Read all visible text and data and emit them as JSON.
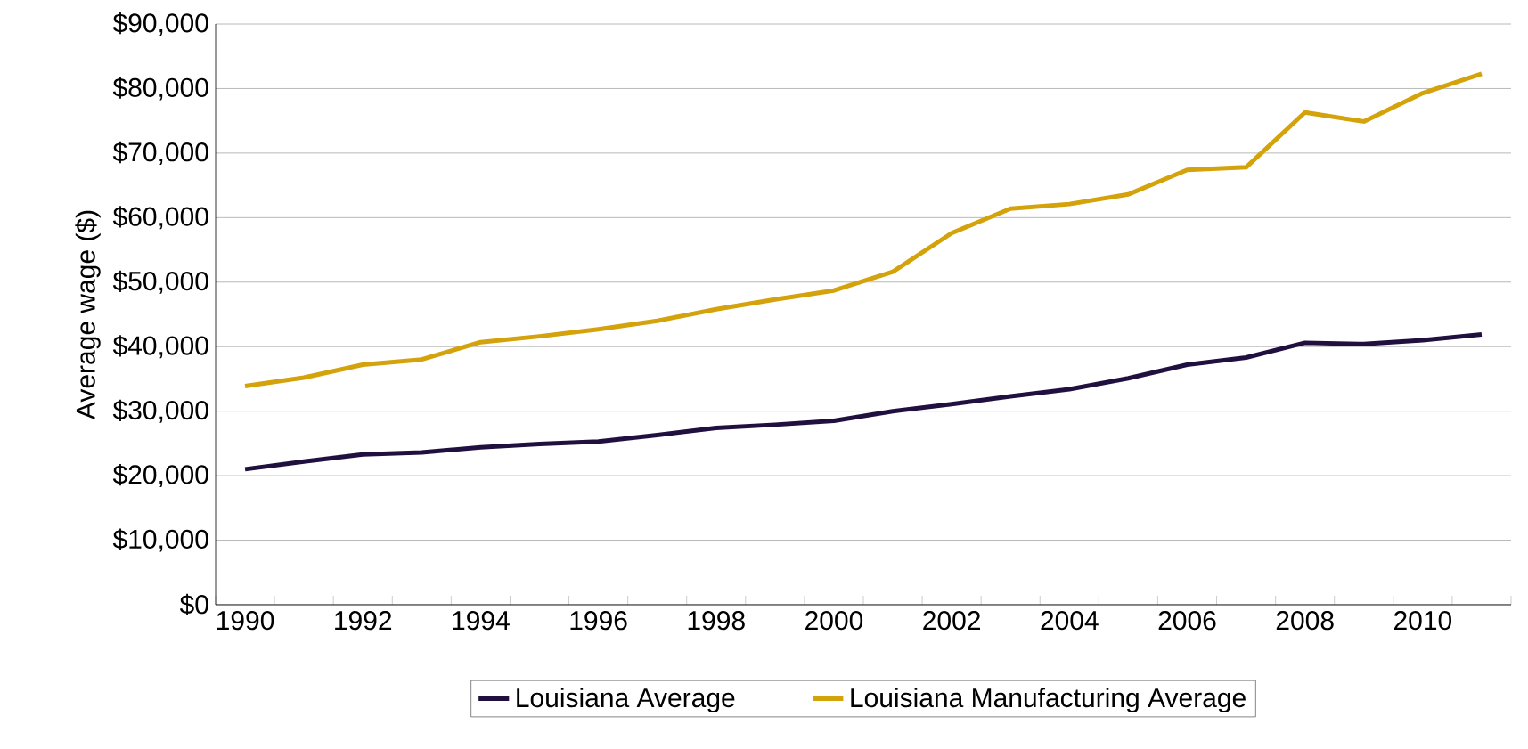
{
  "chart_data": {
    "type": "line",
    "ylabel": "Average wage ($)",
    "categories": [
      "1990",
      null,
      "1992",
      null,
      "1994",
      null,
      "1996",
      null,
      "1998",
      null,
      "2000",
      null,
      "2002",
      null,
      "2004",
      null,
      "2006",
      null,
      "2008",
      null,
      "2010",
      null
    ],
    "series": [
      {
        "name": "Louisiana Average",
        "color": "#20103f",
        "values": [
          21000,
          22200,
          23300,
          23600,
          24400,
          24900,
          25300,
          26300,
          27400,
          27900,
          28500,
          30000,
          31100,
          32300,
          33400,
          35100,
          37200,
          38300,
          40600,
          40400,
          41000,
          41900
        ]
      },
      {
        "name": "Louisiana Manufacturing Average",
        "color": "#d4a20a",
        "values": [
          33900,
          35200,
          37200,
          38000,
          40700,
          41600,
          42700,
          44000,
          45800,
          47300,
          48700,
          51600,
          57600,
          61400,
          62100,
          63600,
          67400,
          67800,
          76300,
          74900,
          79300,
          82300
        ]
      }
    ],
    "ylim": [
      0,
      90000
    ],
    "yticks": [
      {
        "value": 0,
        "label": "$0"
      },
      {
        "value": 10000,
        "label": "$10,000"
      },
      {
        "value": 20000,
        "label": "$20,000"
      },
      {
        "value": 30000,
        "label": "$30,000"
      },
      {
        "value": 40000,
        "label": "$40,000"
      },
      {
        "value": 50000,
        "label": "$50,000"
      },
      {
        "value": 60000,
        "label": "$60,000"
      },
      {
        "value": 70000,
        "label": "$70,000"
      },
      {
        "value": 80000,
        "label": "$80,000"
      },
      {
        "value": 90000,
        "label": "$90,000"
      }
    ],
    "grid": "y",
    "legend": "bottom",
    "marker": "none",
    "line_style": "solid"
  }
}
